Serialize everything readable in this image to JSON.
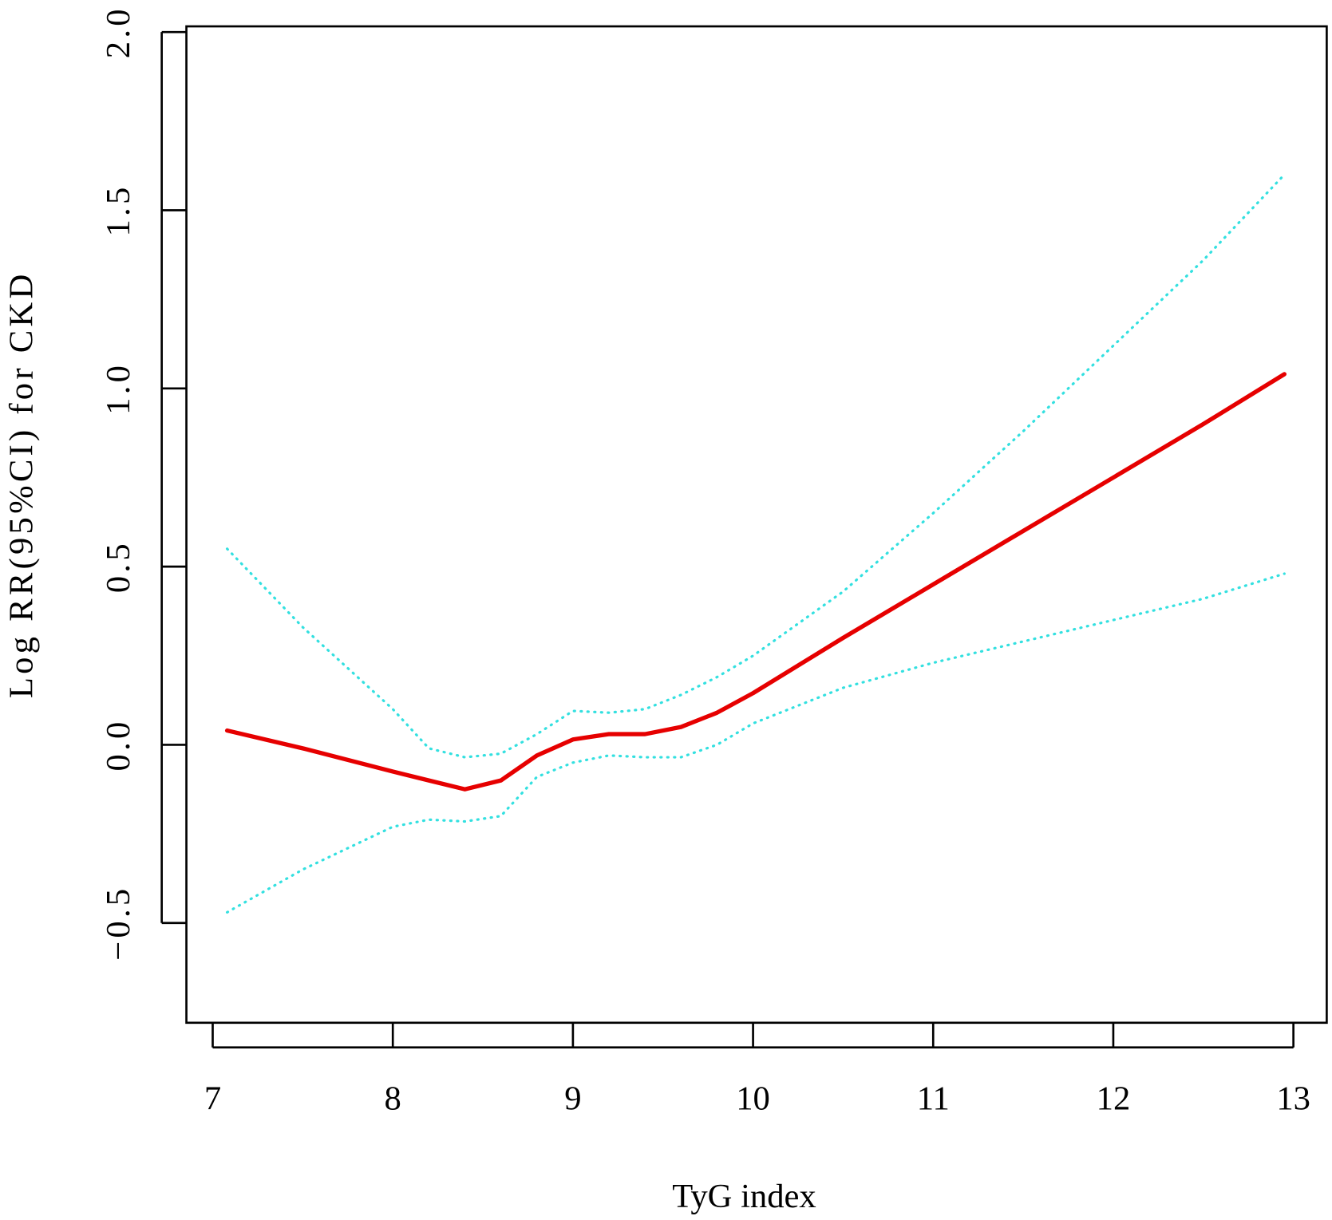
{
  "chart_data": {
    "type": "line",
    "x_label": "TyG index",
    "y_label": "Log RR(95%CI) for CKD",
    "x": [
      7.08,
      7.5,
      8.0,
      8.2,
      8.4,
      8.6,
      8.8,
      9.0,
      9.2,
      9.4,
      9.6,
      9.8,
      10.0,
      10.5,
      11.0,
      11.5,
      12.0,
      12.5,
      12.95
    ],
    "series": [
      {
        "color": "#e60000",
        "style": "solid",
        "values": [
          0.04,
          -0.01,
          -0.075,
          -0.1,
          -0.125,
          -0.1,
          -0.03,
          0.015,
          0.03,
          0.03,
          0.05,
          0.09,
          0.145,
          0.3,
          0.45,
          0.6,
          0.75,
          0.9,
          1.04
        ]
      },
      {
        "color": "#33e0e0",
        "style": "dotted",
        "values": [
          0.55,
          0.33,
          0.1,
          -0.01,
          -0.035,
          -0.025,
          0.03,
          0.095,
          0.09,
          0.1,
          0.14,
          0.19,
          0.25,
          0.43,
          0.65,
          0.88,
          1.12,
          1.36,
          1.6
        ]
      },
      {
        "color": "#33e0e0",
        "style": "dotted",
        "values": [
          -0.47,
          -0.35,
          -0.23,
          -0.21,
          -0.215,
          -0.2,
          -0.09,
          -0.05,
          -0.03,
          -0.035,
          -0.035,
          0.0,
          0.06,
          0.16,
          0.23,
          0.29,
          0.35,
          0.41,
          0.48
        ]
      }
    ],
    "xlim": [
      6.854,
      13.185
    ],
    "ylim": [
      -0.78,
      2.016
    ],
    "xticks": [
      7,
      8,
      9,
      10,
      11,
      12,
      13
    ],
    "yticks": [
      {
        "value": -0.5,
        "label": "−0.5"
      },
      {
        "value": 0,
        "label": "0.0"
      },
      {
        "value": 0.5,
        "label": "0.5"
      },
      {
        "value": 1,
        "label": "1.0"
      },
      {
        "value": 1.5,
        "label": "1.5"
      },
      {
        "value": 2,
        "label": "2.0"
      }
    ]
  }
}
